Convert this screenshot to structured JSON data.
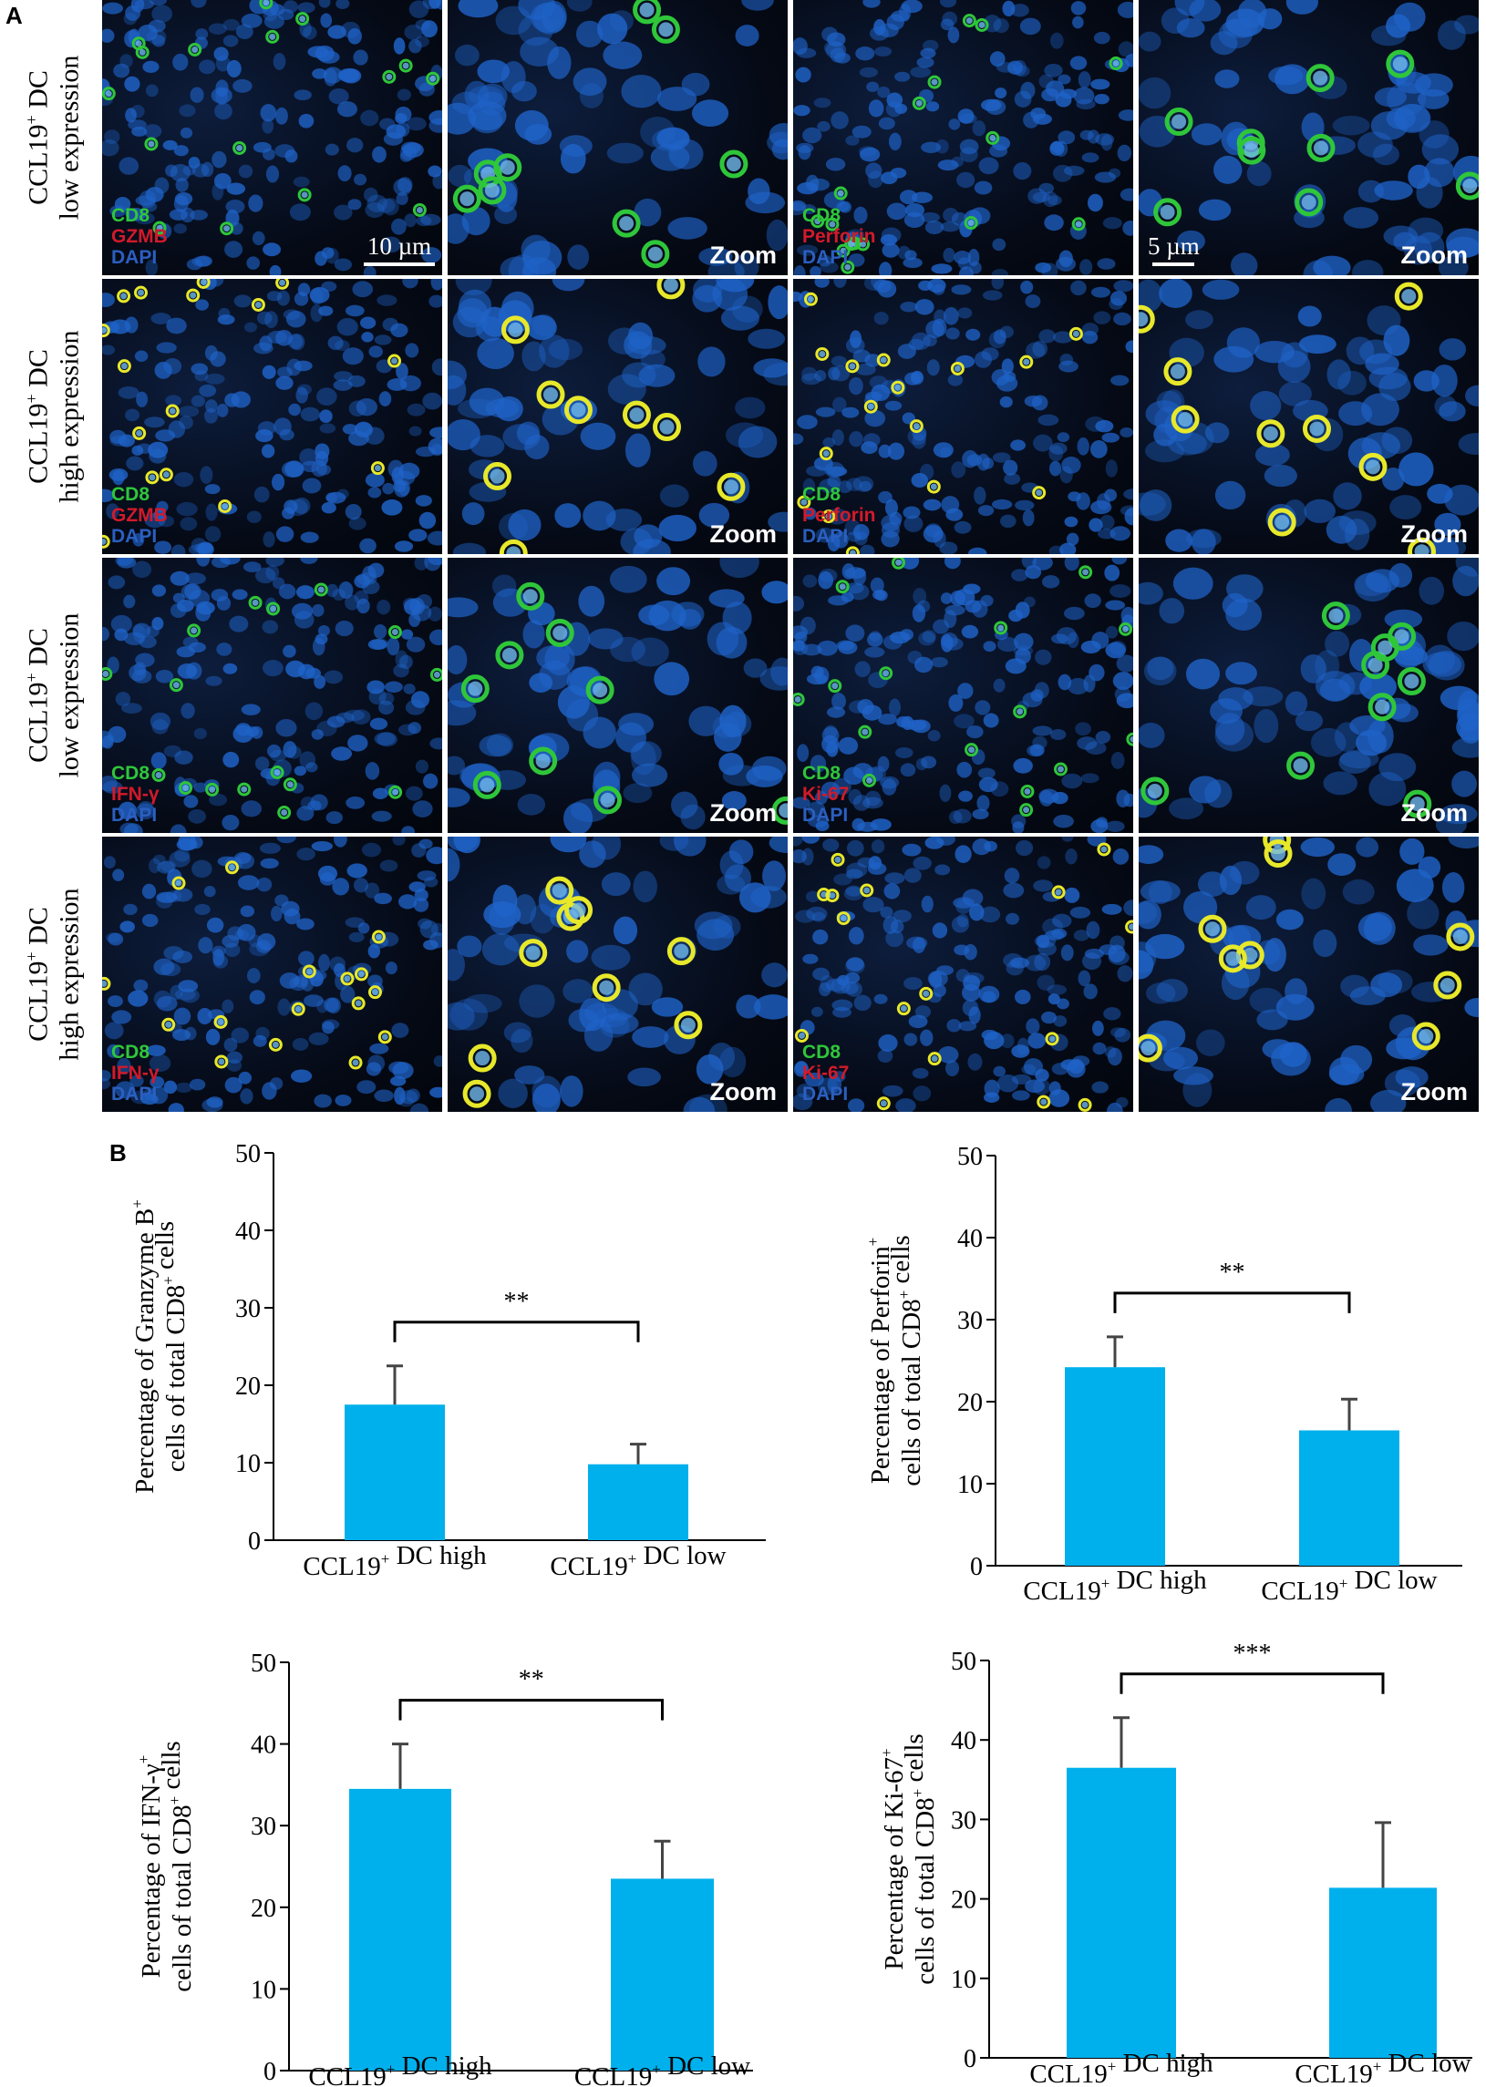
{
  "panel_a": {
    "letter": "A",
    "row_labels": [
      {
        "line1": "CCL19",
        "sup": "+",
        "line1_suffix": " DC",
        "line2": "low expression"
      },
      {
        "line1": "CCL19",
        "sup": "+",
        "line1_suffix": " DC",
        "line2": "high expression"
      },
      {
        "line1": "CCL19",
        "sup": "+",
        "line1_suffix": " DC",
        "line2": "low expression"
      },
      {
        "line1": "CCL19",
        "sup": "+",
        "line1_suffix": " DC",
        "line2": "high expression"
      }
    ],
    "tiles": [
      [
        {
          "stains": [
            "CD8",
            "GZMB",
            "DAPI"
          ],
          "scale": "10 µm"
        },
        {
          "zoom": "Zoom"
        },
        {
          "stains": [
            "CD8",
            "Perforin",
            "DAPI"
          ]
        },
        {
          "zoom": "Zoom",
          "scale": "5 µm"
        }
      ],
      [
        {
          "stains": [
            "CD8",
            "GZMB",
            "DAPI"
          ]
        },
        {
          "zoom": "Zoom"
        },
        {
          "stains": [
            "CD8",
            "Perforin",
            "DAPI"
          ]
        },
        {
          "zoom": "Zoom"
        }
      ],
      [
        {
          "stains": [
            "CD8",
            "IFN-γ",
            "DAPI"
          ]
        },
        {
          "zoom": "Zoom"
        },
        {
          "stains": [
            "CD8",
            "Ki-67",
            "DAPI"
          ]
        },
        {
          "zoom": "Zoom"
        }
      ],
      [
        {
          "stains": [
            "CD8",
            "IFN-γ",
            "DAPI"
          ]
        },
        {
          "zoom": "Zoom"
        },
        {
          "stains": [
            "CD8",
            "Ki-67",
            "DAPI"
          ]
        },
        {
          "zoom": "Zoom"
        }
      ]
    ],
    "colors": {
      "cd8": "#2fc63a",
      "marker": "#d21a2a",
      "dapi": "#2b5fc0",
      "nuclei": "#1f63c8",
      "positive": "#e7e82a"
    }
  },
  "panel_b": {
    "letter": "B"
  },
  "chart_data": [
    {
      "type": "bar",
      "categories": [
        "CCL19+ DC high",
        "CCL19+ DC low"
      ],
      "values": [
        17.5,
        9.8
      ],
      "errors": [
        5.0,
        2.6
      ],
      "ylabel_line1": "Percentage of Granzyme B+",
      "ylabel_line2": "cells of total CD8+ cells",
      "ylim": [
        0,
        50
      ],
      "yticks": [
        0,
        10,
        20,
        30,
        40,
        50
      ],
      "significance": "**",
      "bar_color": "#00b0ec"
    },
    {
      "type": "bar",
      "categories": [
        "CCL19+ DC high",
        "CCL19+ DC low"
      ],
      "values": [
        24.2,
        16.5
      ],
      "errors": [
        3.7,
        3.8
      ],
      "ylabel_line1": "Percentage of Perforin+",
      "ylabel_line2": "cells of total CD8+ cells",
      "ylim": [
        0,
        50
      ],
      "yticks": [
        0,
        10,
        20,
        30,
        40,
        50
      ],
      "significance": "**",
      "bar_color": "#00b0ec"
    },
    {
      "type": "bar",
      "categories": [
        "CCL19+ DC high",
        "CCL19+ DC low"
      ],
      "values": [
        34.5,
        23.5
      ],
      "errors": [
        5.5,
        4.6
      ],
      "ylabel_line1": "Percentage of IFN-γ+",
      "ylabel_line2": "cells of total CD8+ cells",
      "ylim": [
        0,
        50
      ],
      "yticks": [
        0,
        10,
        20,
        30,
        40,
        50
      ],
      "significance": "**",
      "bar_color": "#00b0ec"
    },
    {
      "type": "bar",
      "categories": [
        "CCL19+ DC high",
        "CCL19+ DC low"
      ],
      "values": [
        36.5,
        21.4
      ],
      "errors": [
        6.3,
        8.2
      ],
      "ylabel_line1": "Percentage of Ki-67+",
      "ylabel_line2": "cells of total CD8+ cells",
      "ylim": [
        0,
        50
      ],
      "yticks": [
        0,
        10,
        20,
        30,
        40,
        50
      ],
      "significance": "***",
      "bar_color": "#00b0ec"
    }
  ]
}
